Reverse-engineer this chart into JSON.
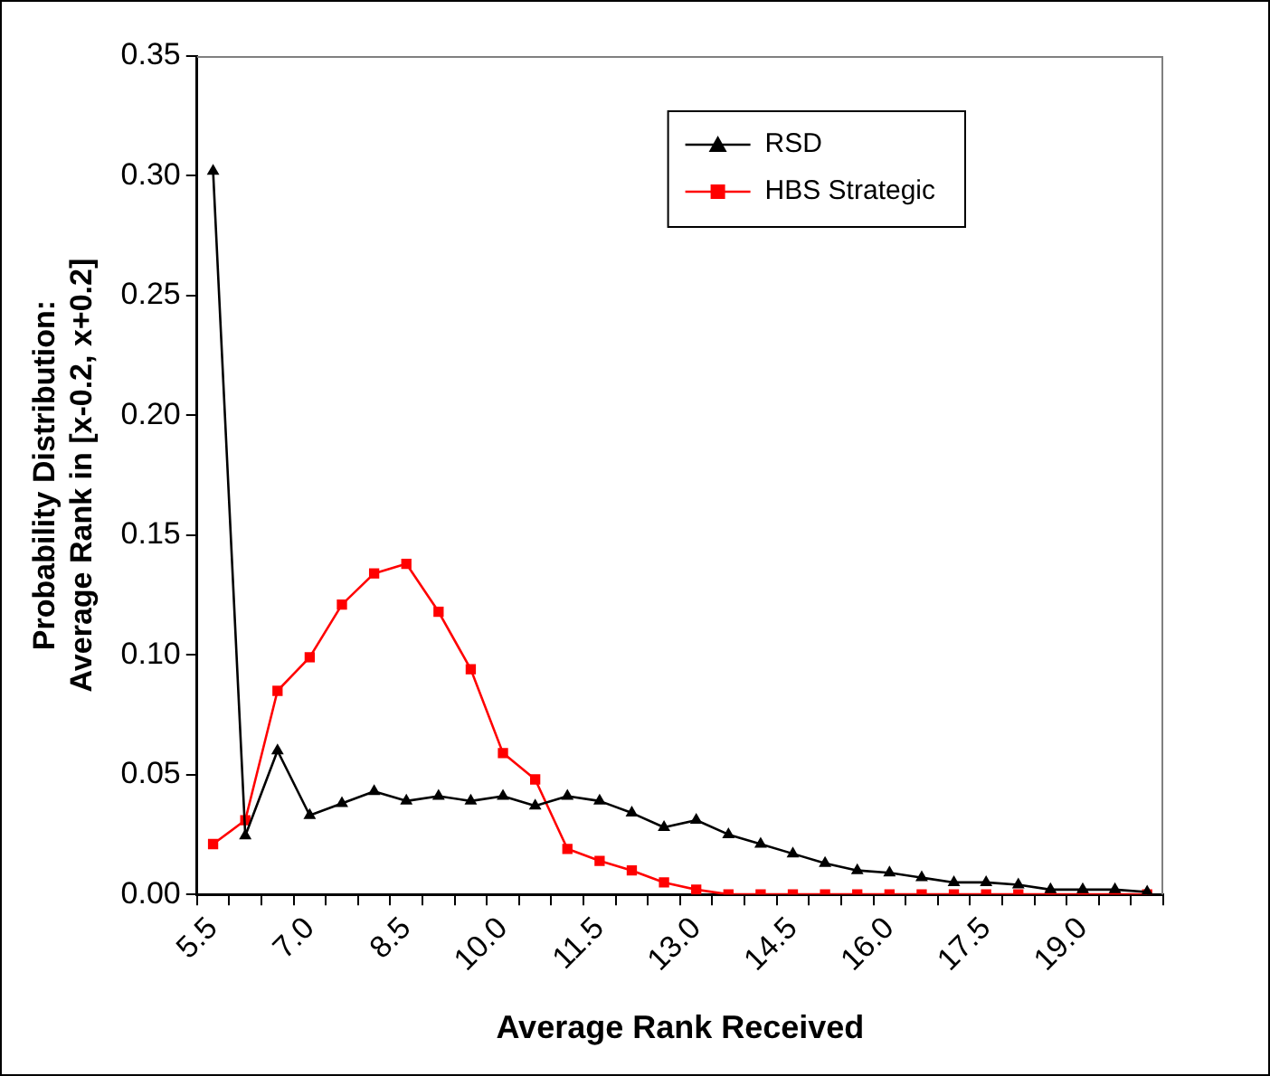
{
  "chart_data": {
    "type": "line",
    "xlabel": "Average Rank Received",
    "ylabel": "Probability Distribution:\nAverage Rank in [x-0.2, x+0.2]",
    "categories": [
      "5.5",
      null,
      null,
      "7.0",
      null,
      null,
      "8.5",
      null,
      null,
      "10.0",
      null,
      null,
      "11.5",
      null,
      null,
      "13.0",
      null,
      null,
      "14.5",
      null,
      null,
      "16.0",
      null,
      null,
      "17.5",
      null,
      null,
      "19.0",
      null,
      null
    ],
    "series": [
      {
        "name": "RSD",
        "color": "#000000",
        "marker": "triangle",
        "values": [
          0.302,
          0.0245,
          0.06,
          0.033,
          0.038,
          0.043,
          0.039,
          0.041,
          0.039,
          0.041,
          0.037,
          0.041,
          0.039,
          0.034,
          0.028,
          0.031,
          0.025,
          0.021,
          0.017,
          0.013,
          0.01,
          0.009,
          0.007,
          0.005,
          0.005,
          0.004,
          0.002,
          0.002,
          0.002,
          0.001
        ]
      },
      {
        "name": "HBS Strategic",
        "color": "#ff0000",
        "marker": "square",
        "values": [
          0.021,
          0.031,
          0.085,
          0.099,
          0.121,
          0.134,
          0.138,
          0.118,
          0.094,
          0.059,
          0.048,
          0.019,
          0.014,
          0.01,
          0.005,
          0.002,
          0,
          0,
          0,
          0,
          0,
          0,
          0,
          0,
          0,
          0,
          0,
          0,
          0,
          0
        ]
      }
    ],
    "ylim": [
      0,
      0.35
    ],
    "yticks": [
      {
        "value": 0,
        "label": "0.00"
      },
      {
        "value": 0.05,
        "label": "0.05"
      },
      {
        "value": 0.1,
        "label": "0.10"
      },
      {
        "value": 0.15,
        "label": "0.15"
      },
      {
        "value": 0.2,
        "label": "0.20"
      },
      {
        "value": 0.25,
        "label": "0.25"
      },
      {
        "value": 0.3,
        "label": "0.30"
      },
      {
        "value": 0.35,
        "label": "0.35"
      }
    ],
    "grid": false,
    "legend": "top right",
    "line_style": "solid"
  }
}
